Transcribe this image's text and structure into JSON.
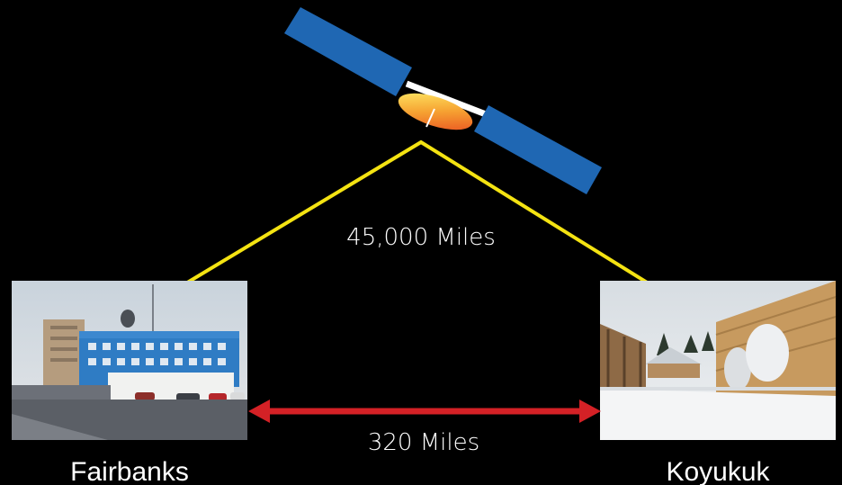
{
  "satellite_link": {
    "distance_label": "45,000 Miles"
  },
  "ground_link": {
    "distance_label": "320 Miles"
  },
  "locations": {
    "left": {
      "name": "Fairbanks"
    },
    "right": {
      "name": "Koyukuk"
    }
  },
  "colors": {
    "background": "#000000",
    "signal_line": "#f4e312",
    "ground_arrow": "#d42126",
    "solar_panel": "#1f67b3",
    "dish": "#f08a2a"
  }
}
